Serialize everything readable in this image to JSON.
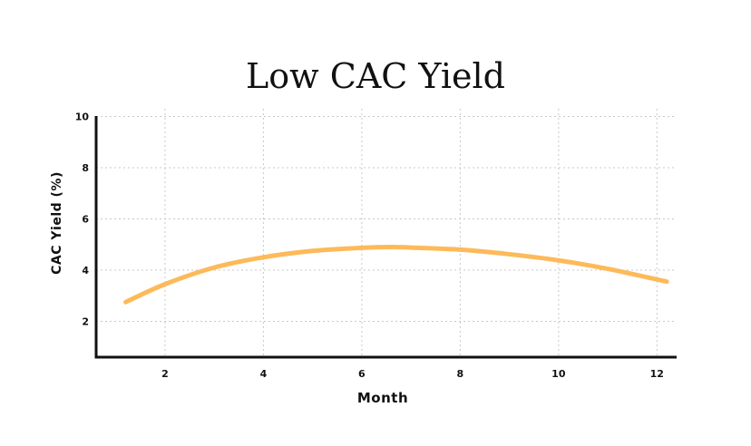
{
  "chart_data": {
    "type": "line",
    "title": "Low CAC Yield",
    "xlabel": "Month",
    "ylabel": "CAC Yield (%)",
    "xlim": [
      0.6,
      12.4
    ],
    "ylim": [
      0.6,
      10.3
    ],
    "x_ticks": [
      2,
      4,
      6,
      8,
      10,
      12
    ],
    "y_ticks": [
      2,
      4,
      6,
      8,
      10
    ],
    "grid": true,
    "series": [
      {
        "color": "#FDBA5A",
        "x": [
          1.2,
          2,
          3,
          4,
          5,
          6,
          6.6,
          7,
          8,
          9,
          10,
          11,
          12.2
        ],
        "y": [
          2.75,
          3.45,
          4.1,
          4.5,
          4.75,
          4.87,
          4.9,
          4.88,
          4.8,
          4.62,
          4.38,
          4.05,
          3.55
        ]
      }
    ]
  }
}
